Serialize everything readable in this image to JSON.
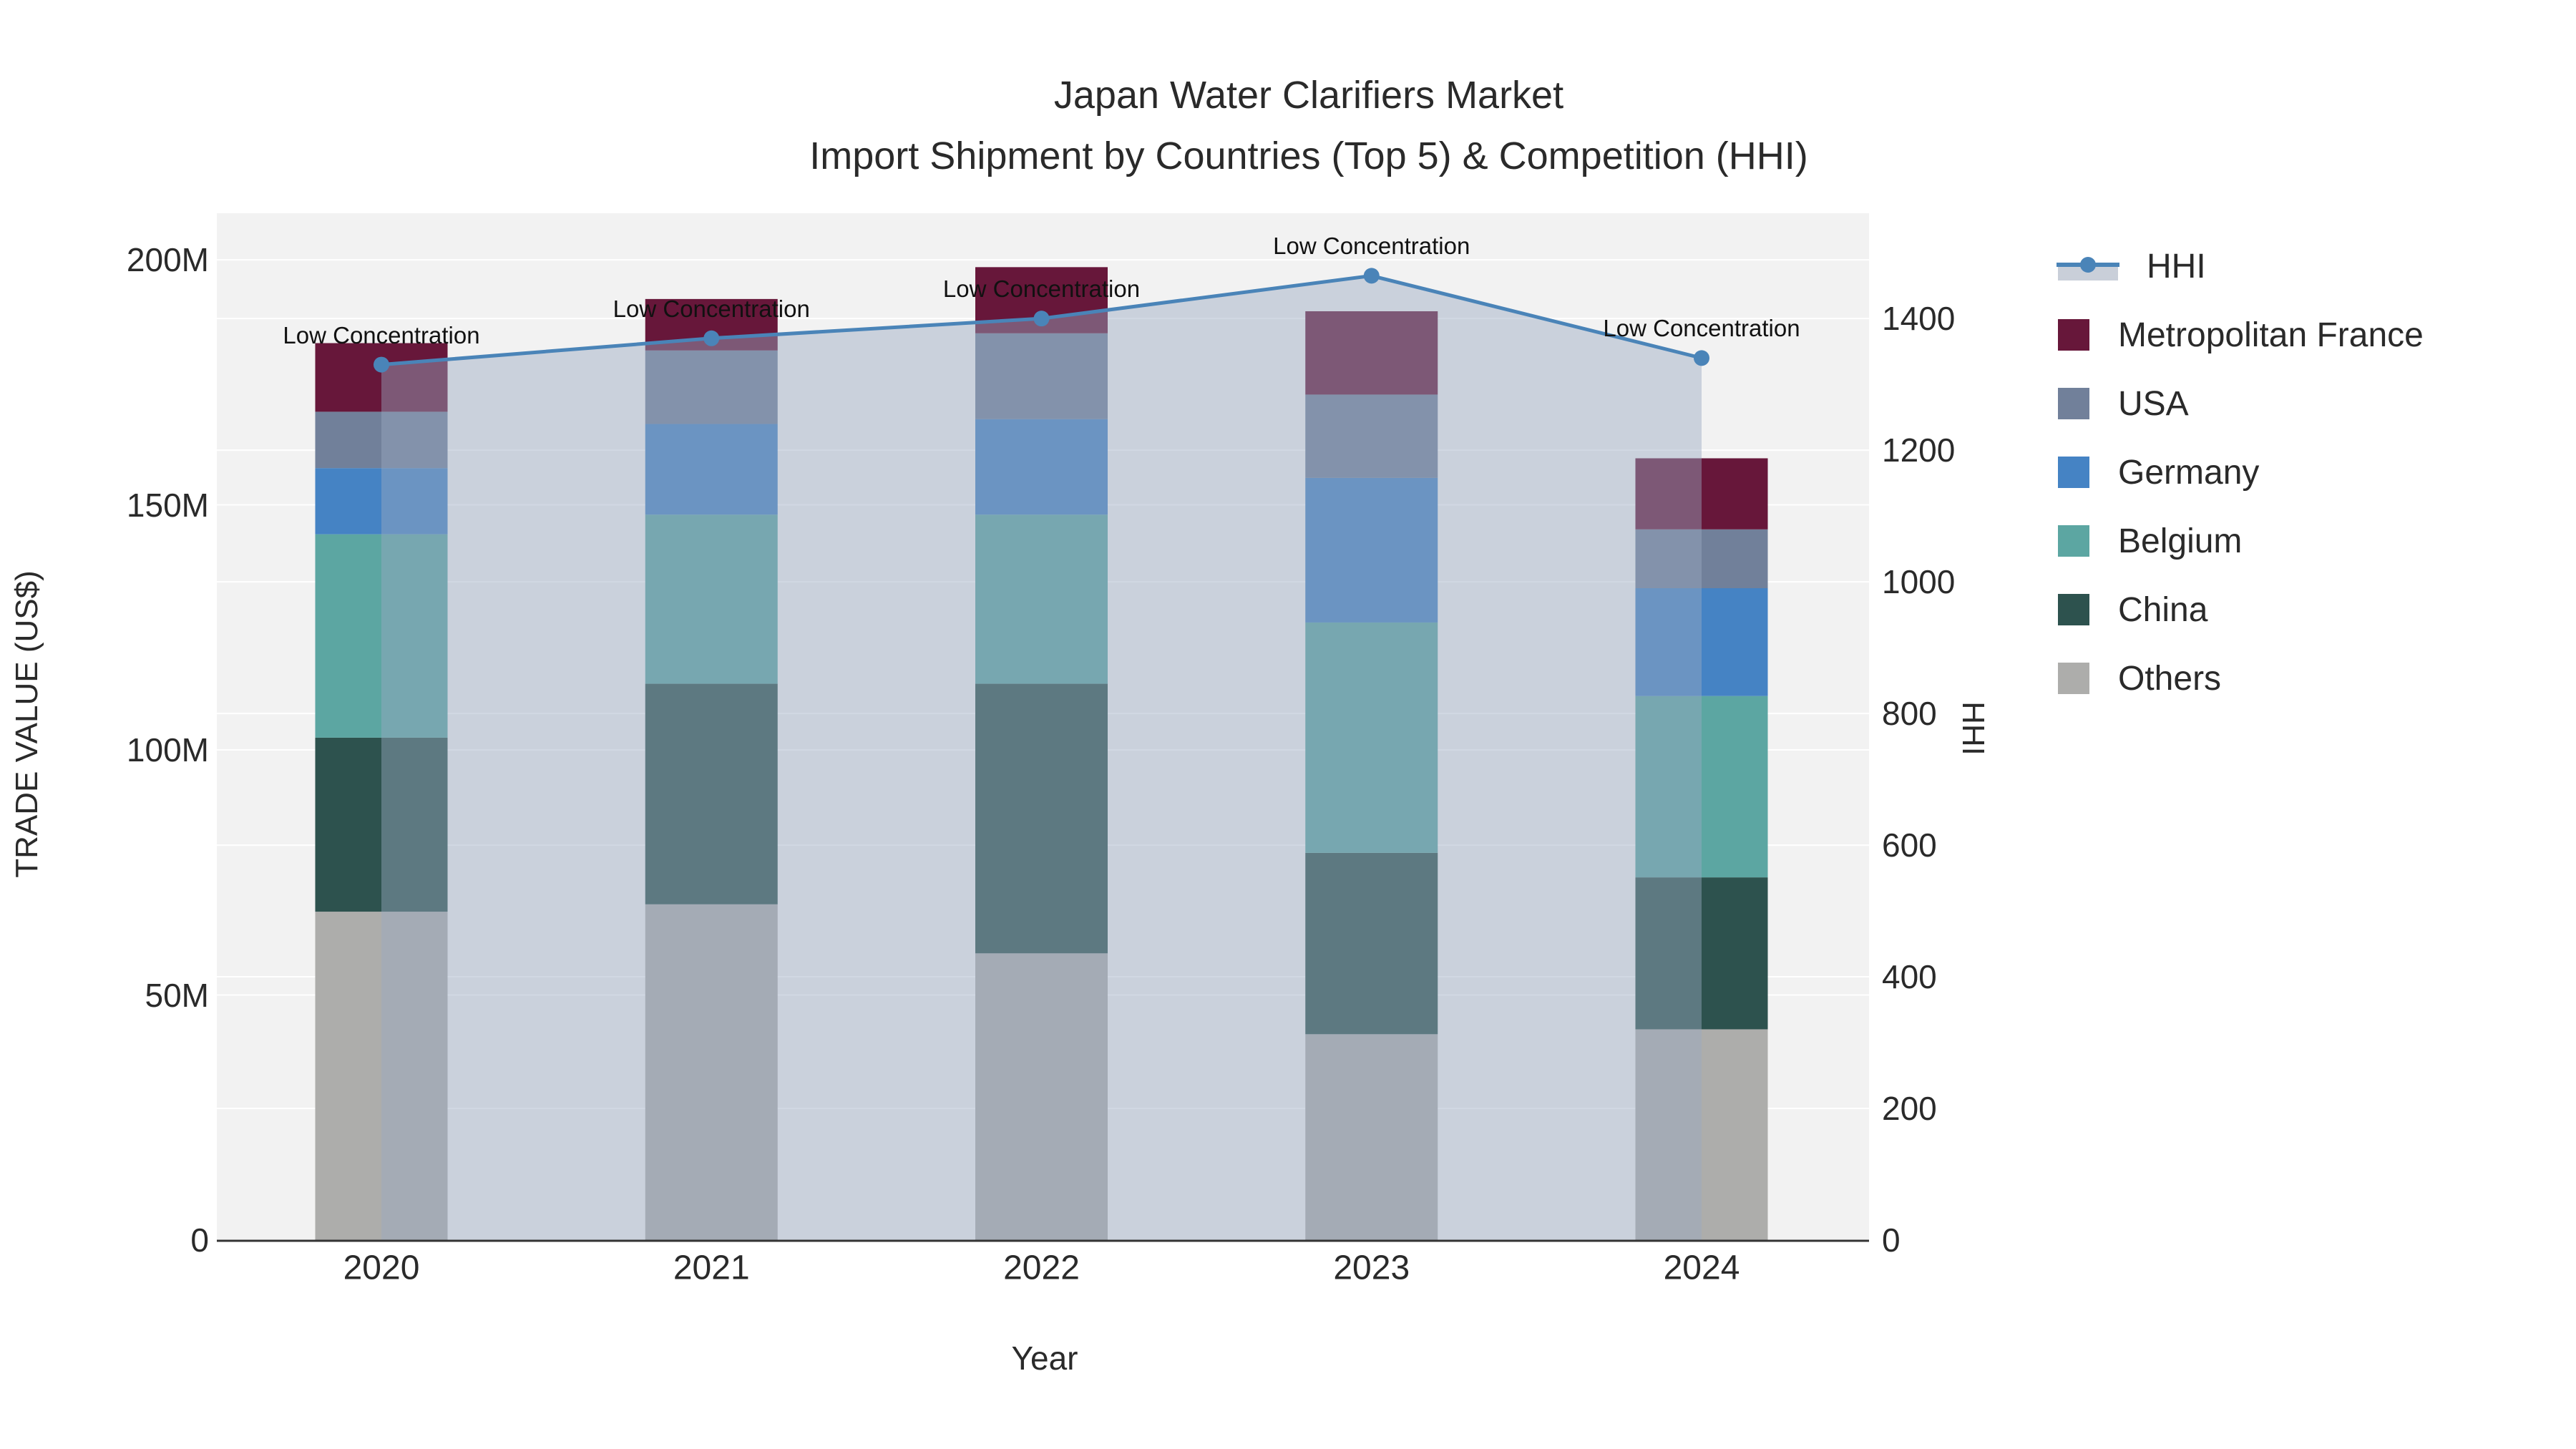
{
  "chart_data": {
    "type": "combo-stacked-bar-line",
    "title": "Japan Water Clarifiers Market",
    "subtitle": "Import Shipment by Countries (Top 5) & Competition (HHI)",
    "categories": [
      "2020",
      "2021",
      "2022",
      "2023",
      "2024"
    ],
    "unit": "US$ millions",
    "bar_series": [
      {
        "name": "Others",
        "color": "#ADADAB",
        "values": [
          67,
          68.5,
          58.5,
          42,
          43
        ]
      },
      {
        "name": "China",
        "color": "#2D524E",
        "values": [
          35.5,
          45,
          55,
          37,
          31
        ]
      },
      {
        "name": "Belgium",
        "color": "#5CA6A2",
        "values": [
          41.5,
          34.5,
          34.5,
          47,
          37
        ]
      },
      {
        "name": "Germany",
        "color": "#4583C4",
        "values": [
          13.5,
          18.5,
          19.5,
          29.5,
          22
        ]
      },
      {
        "name": "USA",
        "color": "#71809A",
        "values": [
          11.5,
          15,
          17.5,
          17,
          12
        ]
      },
      {
        "name": "Metropolitan France",
        "color": "#67173A",
        "values": [
          14,
          10.5,
          13.5,
          17,
          14.5
        ]
      }
    ],
    "bar_totals": [
      183,
      192,
      198.5,
      189.5,
      159.5
    ],
    "line_series": {
      "name": "HHI",
      "axis": "right",
      "color": "#4A84B8",
      "fill_to_zero": true,
      "fill_color": "rgba(152,168,192,0.45)",
      "values": [
        1330,
        1370,
        1400,
        1465,
        1340
      ]
    },
    "annotations": [
      {
        "text": "Low Concentration",
        "x": "2020"
      },
      {
        "text": "Low Concentration",
        "x": "2021"
      },
      {
        "text": "Low Concentration",
        "x": "2022"
      },
      {
        "text": "Low Concentration",
        "x": "2023"
      },
      {
        "text": "Low Concentration",
        "x": "2024"
      }
    ],
    "axes": {
      "left": {
        "title": "TRADE VALUE (US$)",
        "tick_labels": [
          "0",
          "50M",
          "100M",
          "150M",
          "200M"
        ],
        "tick_values": [
          0,
          50,
          100,
          150,
          200
        ],
        "range": [
          0,
          209.5
        ]
      },
      "right": {
        "title": "HHI",
        "tick_labels": [
          "0",
          "200",
          "400",
          "600",
          "800",
          "1000",
          "1200",
          "1400"
        ],
        "tick_values": [
          0,
          200,
          400,
          600,
          800,
          1000,
          1200,
          1400
        ],
        "range": [
          0,
          1560
        ]
      },
      "x": {
        "title": "Year"
      }
    },
    "legend": {
      "position": "right",
      "entries": [
        "HHI",
        "Metropolitan France",
        "USA",
        "Germany",
        "Belgium",
        "China",
        "Others"
      ]
    },
    "grid": true,
    "plot_background": "#F2F2F2",
    "grid_color": "#FFFFFF",
    "axis_line_color": "#333333"
  }
}
